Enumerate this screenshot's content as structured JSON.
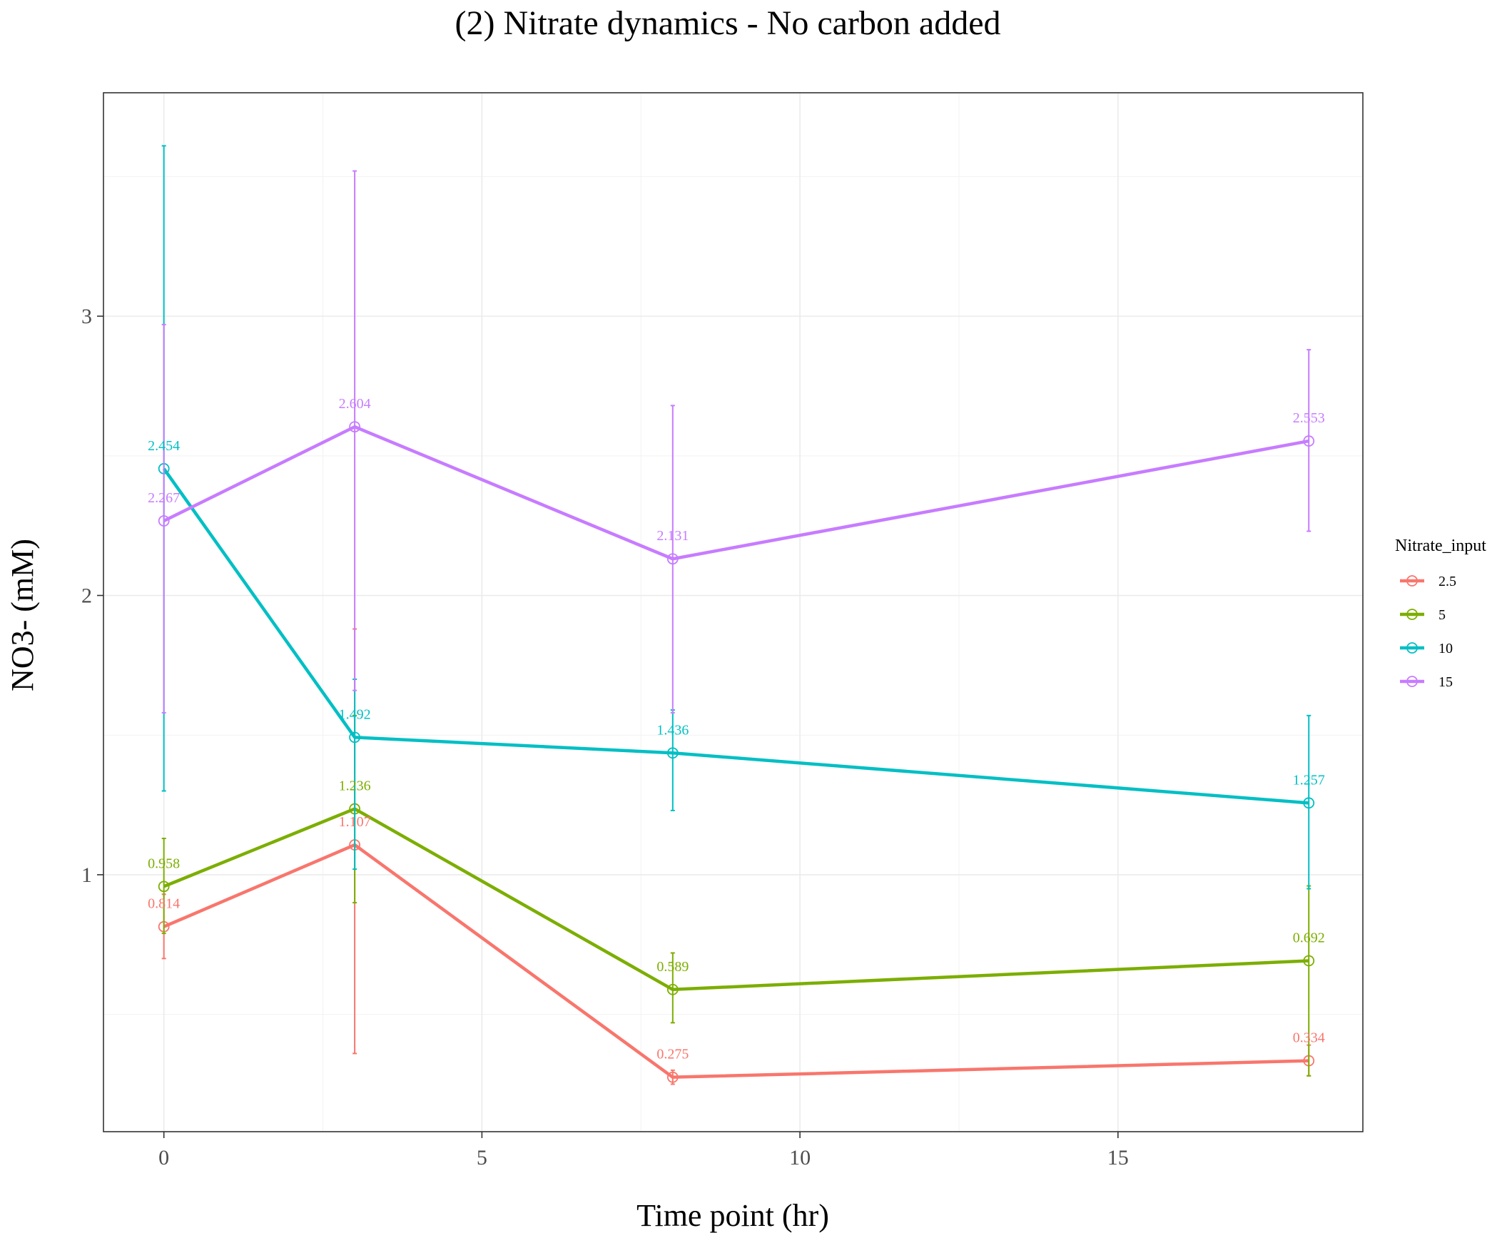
{
  "chart_data": {
    "type": "line",
    "title": "(2) Nitrate dynamics - No carbon added",
    "xlabel": "Time point (hr)",
    "ylabel": "NO3- (mM)",
    "x": [
      0,
      3,
      8,
      18
    ],
    "xlim": [
      -0.95,
      18.85
    ],
    "ylim": [
      0.08,
      3.8
    ],
    "x_ticks": [
      0,
      5,
      10,
      15
    ],
    "y_ticks": [
      1,
      2,
      3
    ],
    "grid": true,
    "legend": {
      "title": "Nitrate_input",
      "placement": "right"
    },
    "series": [
      {
        "name": "2.5",
        "color": "#F8766D",
        "values": [
          0.814,
          1.107,
          0.275,
          0.334
        ],
        "labels": [
          "0.814",
          "1.107",
          "0.275",
          "0.334"
        ],
        "err_low": [
          0.7,
          0.36,
          0.25,
          0.28
        ],
        "err_high": [
          0.93,
          1.88,
          0.3,
          0.39
        ]
      },
      {
        "name": "5",
        "color": "#7CAE00",
        "values": [
          0.958,
          1.236,
          0.589,
          0.692
        ],
        "labels": [
          "0.958",
          "1.236",
          "0.589",
          "0.692"
        ],
        "err_low": [
          0.79,
          0.9,
          0.47,
          0.28
        ],
        "err_high": [
          1.13,
          1.57,
          0.72,
          0.96
        ]
      },
      {
        "name": "10",
        "color": "#00BFC4",
        "values": [
          2.454,
          1.492,
          1.436,
          1.257
        ],
        "labels": [
          "2.454",
          "1.492",
          "1.436",
          "1.257"
        ],
        "err_low": [
          1.3,
          1.02,
          1.23,
          0.95
        ],
        "err_high": [
          3.61,
          1.7,
          1.59,
          1.57
        ]
      },
      {
        "name": "15",
        "color": "#C77CFF",
        "values": [
          2.267,
          2.604,
          2.131,
          2.553
        ],
        "labels": [
          "2.267",
          "2.604",
          "2.131",
          "2.553"
        ],
        "err_low": [
          1.58,
          1.66,
          1.58,
          2.23
        ],
        "err_high": [
          2.97,
          3.52,
          2.68,
          2.88
        ]
      }
    ]
  }
}
